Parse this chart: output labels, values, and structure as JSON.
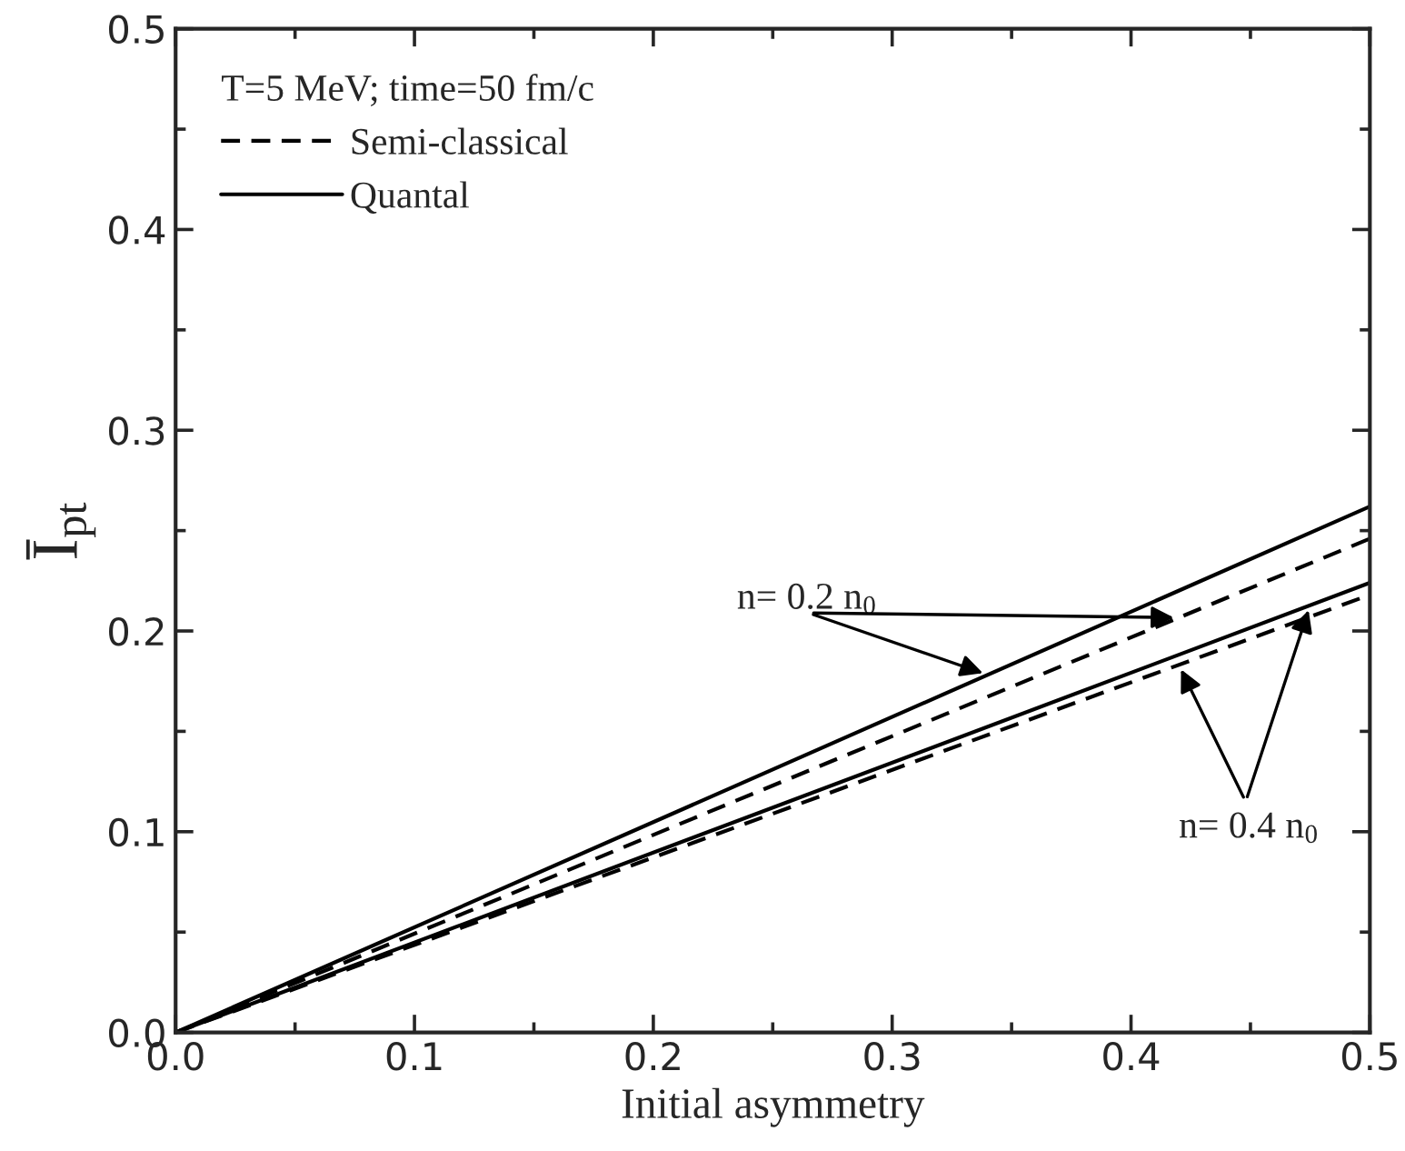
{
  "chart_data": {
    "type": "line",
    "xlabel": "Initial asymmetry",
    "ylabel": "Ī$_{pt}$",
    "legend_title": "T=5 MeV; time=50 fm/c",
    "legend": "top left",
    "grid": false,
    "marker": "none",
    "xlim": [
      0,
      0.5
    ],
    "ylim": [
      0,
      0.5
    ],
    "xticks": [
      {
        "value": 0,
        "label": "0.0"
      },
      0.1,
      0.2,
      0.3,
      0.4,
      0.5
    ],
    "yticks": [
      {
        "value": 0,
        "label": "0.0"
      },
      0.1,
      0.2,
      0.3,
      0.4,
      0.5
    ],
    "x": [
      0,
      0.5
    ],
    "series": [
      {
        "name": "Semi-classical",
        "color": "#000000",
        "line_style": "dashed",
        "values": [
          0,
          0.246
        ]
      },
      {
        "name": "Quantal",
        "color": "#000000",
        "line_style": "solid",
        "values": [
          0,
          0.262
        ]
      },
      {
        "color": "#000000",
        "line_style": "dashed",
        "values": [
          0,
          0.218
        ]
      },
      {
        "color": "#000000",
        "line_style": "solid",
        "values": [
          0,
          0.224
        ]
      }
    ],
    "annotations": [
      {
        "text": "n= 0.2 n$_{0}$",
        "x": 0.42,
        "y": 0.207
      },
      {
        "text": "n= 0.4 n$_{0}$",
        "x": 0.42,
        "y": 0.183
      }
    ]
  }
}
